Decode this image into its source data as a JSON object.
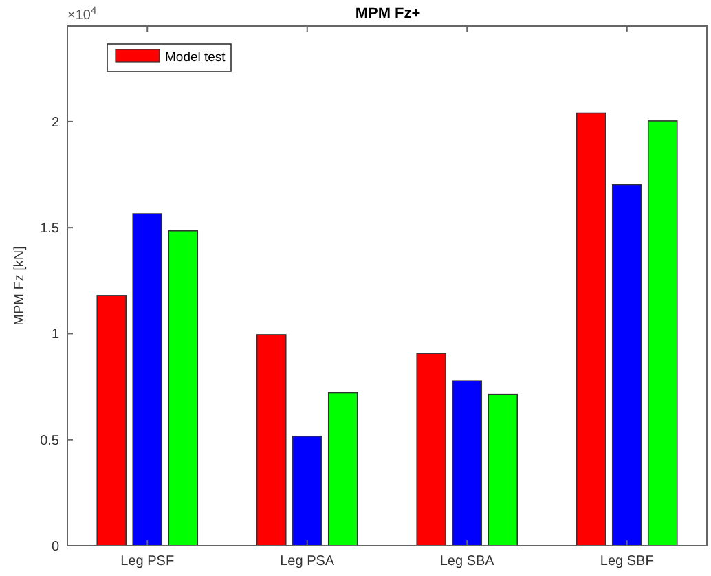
{
  "chart_data": {
    "type": "bar",
    "title": "MPM Fz+",
    "ylabel": "MPM Fz [kN]",
    "annotations": [
      "×10$^{4}$"
    ],
    "categories": [
      "Leg PSF",
      "Leg PSA",
      "Leg SBA",
      "Leg SBF"
    ],
    "series": [
      {
        "name": "Model test",
        "color": "#ff0000",
        "values": [
          1.18,
          0.995,
          0.907,
          2.04
        ]
      },
      {
        "color": "#0000ff",
        "values": [
          1.565,
          0.516,
          0.777,
          1.703
        ]
      },
      {
        "color": "#00ff00",
        "values": [
          1.485,
          0.721,
          0.714,
          2.003
        ]
      }
    ],
    "ylim": [
      0,
      2.45
    ],
    "yticks": [
      0,
      0.5,
      1,
      1.5,
      2
    ],
    "grid": false,
    "legend": "top left"
  }
}
